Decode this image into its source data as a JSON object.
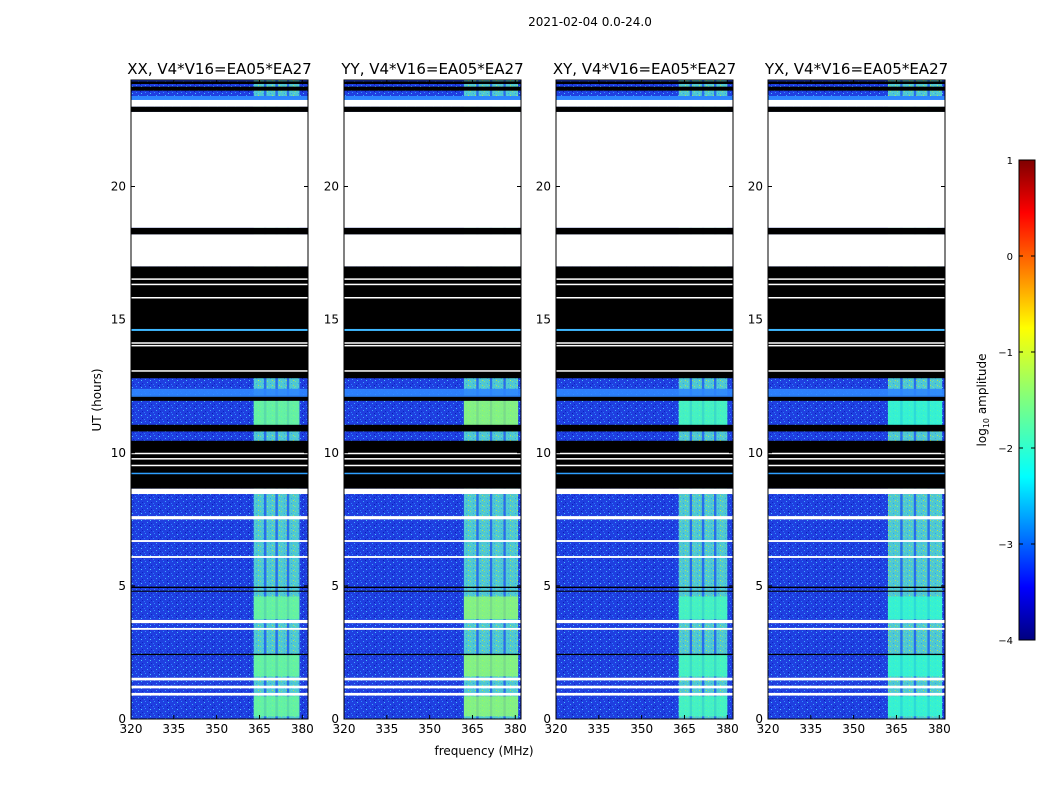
{
  "figure_title": "2021-02-04 0.0-24.0",
  "chart_data": {
    "type": "heatmap",
    "xlabel": "frequency (MHz)",
    "ylabel": "UT (hours)",
    "xlim": [
      320,
      382
    ],
    "ylim": [
      0,
      24
    ],
    "x_ticks": [
      320,
      335,
      350,
      365,
      380
    ],
    "y_ticks": [
      0,
      5,
      10,
      15,
      20
    ],
    "colorbar": {
      "label": "log10 amplitude",
      "label_main": "log",
      "label_sub": "10",
      "label_rest": " amplitude",
      "range": [
        -4,
        1
      ],
      "ticks": [
        1,
        0,
        -1,
        -2,
        -3,
        -4
      ],
      "colormap": "jet"
    },
    "flagged_bands_hours": [
      [
        23.6,
        23.75
      ],
      [
        23.85,
        23.95
      ],
      [
        22.8,
        23.0
      ],
      [
        18.2,
        18.45
      ],
      [
        12.8,
        17.0
      ],
      [
        11.95,
        12.15
      ],
      [
        10.8,
        11.05
      ],
      [
        8.65,
        10.45
      ],
      [
        4.78,
        4.82
      ],
      [
        4.92,
        4.97
      ],
      [
        2.4,
        2.45
      ]
    ],
    "blank_bands_hours": [
      [
        23.0,
        23.25
      ],
      [
        18.45,
        22.8
      ],
      [
        17.0,
        18.2
      ],
      [
        8.45,
        8.65
      ],
      [
        7.5,
        7.62
      ],
      [
        6.65,
        6.72
      ],
      [
        6.05,
        6.12
      ],
      [
        3.6,
        3.72
      ],
      [
        3.35,
        3.42
      ],
      [
        1.45,
        1.55
      ],
      [
        1.15,
        1.25
      ],
      [
        0.88,
        0.98
      ]
    ],
    "active_band_mhz": [
      362,
      381
    ],
    "panels": [
      {
        "title": "XX, V4*V16=EA05*EA27",
        "band_mhz": [
          363,
          379
        ],
        "band_level": -1.6
      },
      {
        "title": "YY, V4*V16=EA05*EA27",
        "band_mhz": [
          362,
          381
        ],
        "band_level": -1.4
      },
      {
        "title": "XY, V4*V16=EA05*EA27",
        "band_mhz": [
          363,
          380
        ],
        "band_level": -1.8
      },
      {
        "title": "YX, V4*V16=EA05*EA27",
        "band_mhz": [
          362,
          381
        ],
        "band_level": -1.9
      }
    ]
  }
}
